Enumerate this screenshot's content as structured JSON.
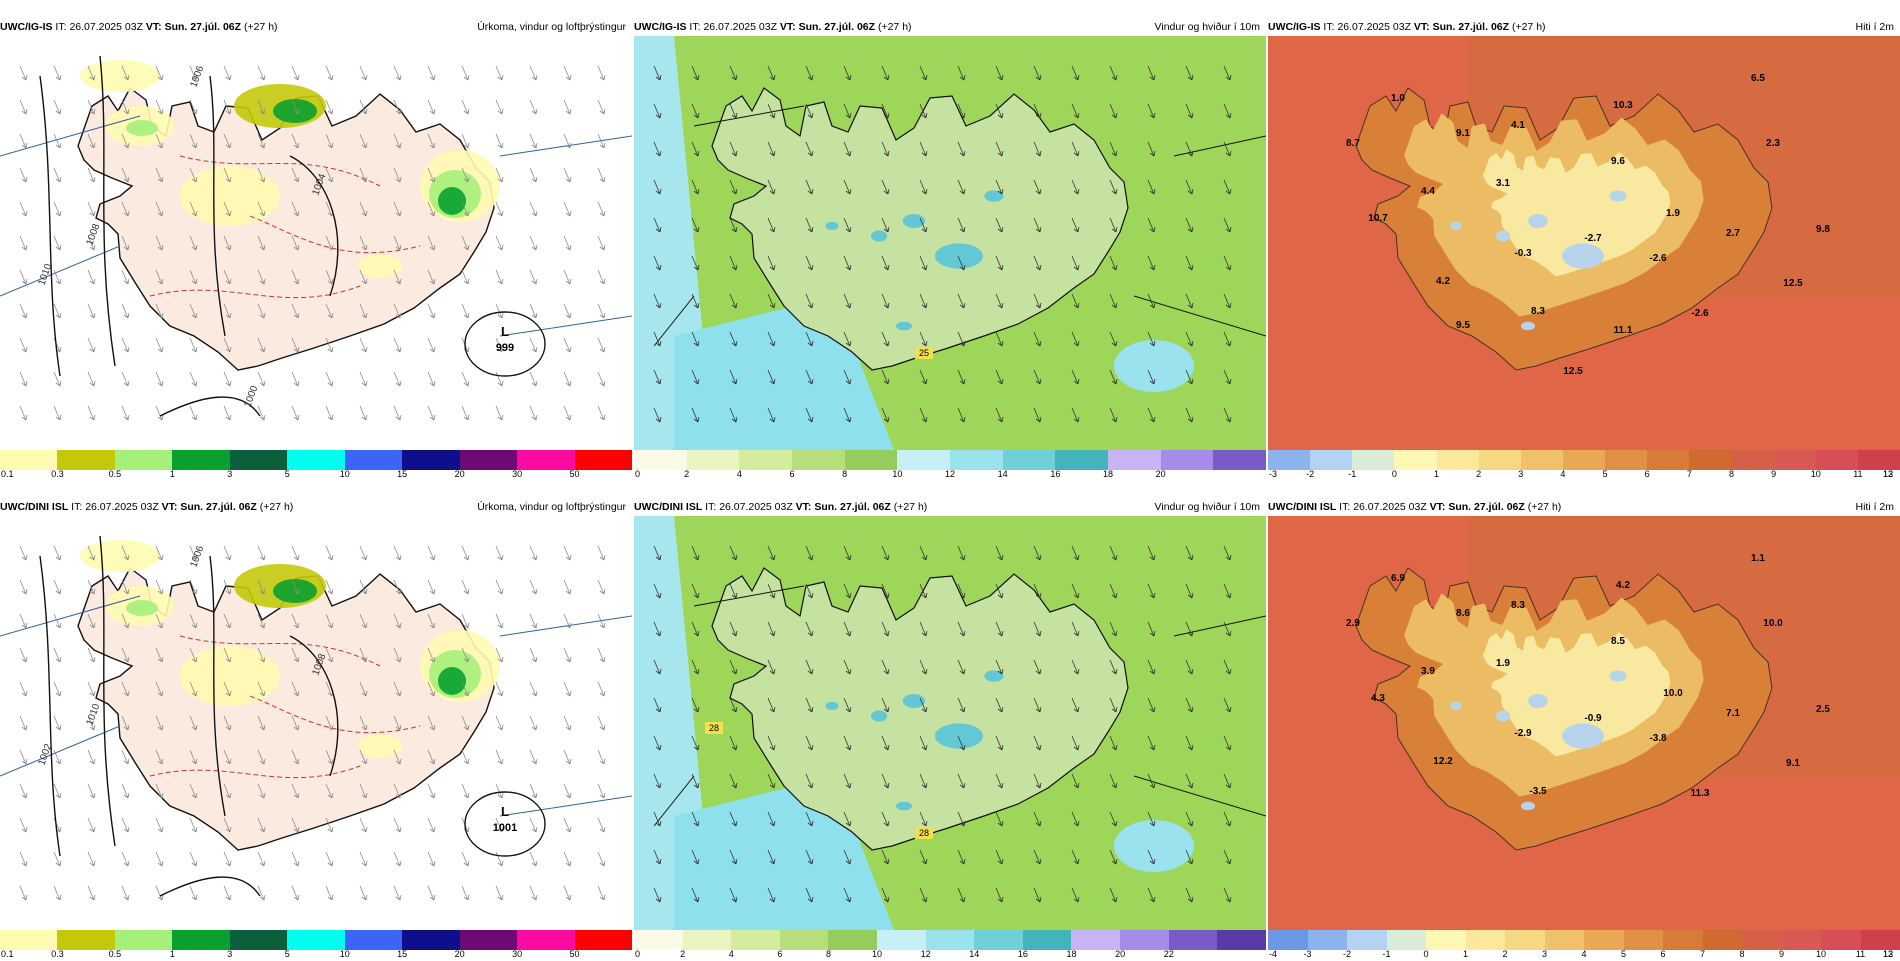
{
  "panels": [
    {
      "id": "p11",
      "model": "UWC/IG-IS",
      "it_label": "IT:",
      "it": "26.07.2025 03Z",
      "vt_label": "VT:",
      "vt": "Sun. 27.júl. 06Z",
      "lead": "(+27 h)",
      "title": "Úrkoma, vindur og loftþrýstingur",
      "kind": "precip",
      "colorbar": {
        "colors": [
          "#fffbb0",
          "#c4c80a",
          "#a6f07a",
          "#0aa030",
          "#0b5f3a",
          "#00ffee",
          "#3c64f5",
          "#0f0f8c",
          "#6e0a78",
          "#ff0aa0",
          "#ff0000"
        ],
        "ticks": [
          "0.1",
          "0.3",
          "0.5",
          "1",
          "3",
          "5",
          "10",
          "15",
          "20",
          "30",
          "50"
        ]
      },
      "isobars": [
        "1006",
        "1004",
        "1008",
        "1010",
        "1000"
      ],
      "low": {
        "letter": "L",
        "value": "999"
      }
    },
    {
      "id": "p12",
      "model": "UWC/IG-IS",
      "it_label": "IT:",
      "it": "26.07.2025 03Z",
      "vt_label": "VT:",
      "vt": "Sun. 27.júl. 06Z",
      "lead": "(+27 h)",
      "title": "Vindur og hviður í 10m",
      "kind": "wind",
      "colorbar": {
        "colors": [
          "#fafae6",
          "#e9f4c0",
          "#d4ec9e",
          "#b6de7a",
          "#96cc5c",
          "#c6f0f6",
          "#9ae2ee",
          "#70cfd8",
          "#44b4bc",
          "#c8b4f5",
          "#a68ce8",
          "#7a5ac8"
        ],
        "ticks": [
          "0",
          "2",
          "4",
          "6",
          "8",
          "10",
          "12",
          "14",
          "16",
          "18",
          "20"
        ]
      },
      "labels": [
        "25"
      ]
    },
    {
      "id": "p13",
      "model": "UWC/IG-IS",
      "it_label": "IT:",
      "it": "26.07.2025 03Z",
      "vt_label": "VT:",
      "vt": "Sun. 27.júl. 06Z",
      "lead": "(+27 h)",
      "title": "Hiti í 2m",
      "kind": "temp",
      "colorbar": {
        "colors": [
          "#8cb4ec",
          "#b4d2f4",
          "#d8ecd8",
          "#fff7b4",
          "#fbe89a",
          "#f6d782",
          "#f0c06a",
          "#e8a854",
          "#e09044",
          "#d87a38",
          "#d06a30",
          "#d46048",
          "#d85854",
          "#d84e56",
          "#d0404a"
        ],
        "ticks": [
          "-3",
          "-2",
          "-1",
          "0",
          "1",
          "2",
          "3",
          "4",
          "5",
          "6",
          "7",
          "8",
          "9",
          "10",
          "11",
          "12",
          "13"
        ]
      },
      "temps": [
        "6.5",
        "1.0",
        "10.3",
        "4.1",
        "9.1",
        "8.7",
        "2.3",
        "9.6",
        "3.1",
        "4.4",
        "1.9",
        "10.7",
        "9.8",
        "2.7",
        "-2.7",
        "-0.3",
        "-2.6",
        "4.2",
        "12.5",
        "8.3",
        "-2.6",
        "9.5",
        "11.1",
        "12.5"
      ]
    },
    {
      "id": "p21",
      "model": "UWC/DINI ISL",
      "it_label": "IT:",
      "it": "26.07.2025 03Z",
      "vt_label": "VT:",
      "vt": "Sun. 27.júl. 06Z",
      "lead": "(+27 h)",
      "title": "Úrkoma, vindur og loftþrýstingur",
      "kind": "precip",
      "colorbar": {
        "colors": [
          "#fffbb0",
          "#c4c80a",
          "#a6f07a",
          "#0aa030",
          "#0b5f3a",
          "#00ffee",
          "#3c64f5",
          "#0f0f8c",
          "#6e0a78",
          "#ff0aa0",
          "#ff0000"
        ],
        "ticks": [
          "0.1",
          "0.3",
          "0.5",
          "1",
          "3",
          "5",
          "10",
          "15",
          "20",
          "30",
          "50"
        ]
      },
      "isobars": [
        "1006",
        "1008",
        "1010",
        "1002"
      ],
      "low": {
        "letter": "L",
        "value": "1001"
      }
    },
    {
      "id": "p22",
      "model": "UWC/DINI ISL",
      "it_label": "IT:",
      "it": "26.07.2025 03Z",
      "vt_label": "VT:",
      "vt": "Sun. 27.júl. 06Z",
      "lead": "(+27 h)",
      "title": "Vindur og hviður í 10m",
      "kind": "wind",
      "colorbar": {
        "colors": [
          "#fafae6",
          "#e9f4c0",
          "#d4ec9e",
          "#b6de7a",
          "#96cc5c",
          "#c6f0f6",
          "#9ae2ee",
          "#70cfd8",
          "#44b4bc",
          "#c8b4f5",
          "#a68ce8",
          "#7a5ac8",
          "#5a3aa8"
        ],
        "ticks": [
          "0",
          "2",
          "4",
          "6",
          "8",
          "10",
          "12",
          "14",
          "16",
          "18",
          "20",
          "22"
        ]
      },
      "labels": [
        "28",
        "28"
      ]
    },
    {
      "id": "p23",
      "model": "UWC/DINI ISL",
      "it_label": "IT:",
      "it": "26.07.2025 03Z",
      "vt_label": "VT:",
      "vt": "Sun. 27.júl. 06Z",
      "lead": "(+27 h)",
      "title": "Hiti í 2m",
      "kind": "temp",
      "colorbar": {
        "colors": [
          "#6a98e4",
          "#8cb4ec",
          "#b4d2f4",
          "#d8ecd8",
          "#fff7b4",
          "#fbe89a",
          "#f6d782",
          "#f0c06a",
          "#e8a854",
          "#e09044",
          "#d87a38",
          "#d06a30",
          "#d46048",
          "#d85854",
          "#d84e56",
          "#d0404a"
        ],
        "ticks": [
          "-4",
          "-3",
          "-2",
          "-1",
          "0",
          "1",
          "2",
          "3",
          "4",
          "5",
          "6",
          "7",
          "8",
          "9",
          "10",
          "11",
          "12",
          "13"
        ]
      },
      "temps": [
        "1.1",
        "6.9",
        "4.2",
        "8.3",
        "8.6",
        "2.9",
        "10.0",
        "8.5",
        "1.9",
        "3.9",
        "10.0",
        "4.3",
        "2.5",
        "7.1",
        "-0.9",
        "-2.9",
        "-3.8",
        "12.2",
        "9.1",
        "-3.5",
        "11.3"
      ]
    }
  ]
}
